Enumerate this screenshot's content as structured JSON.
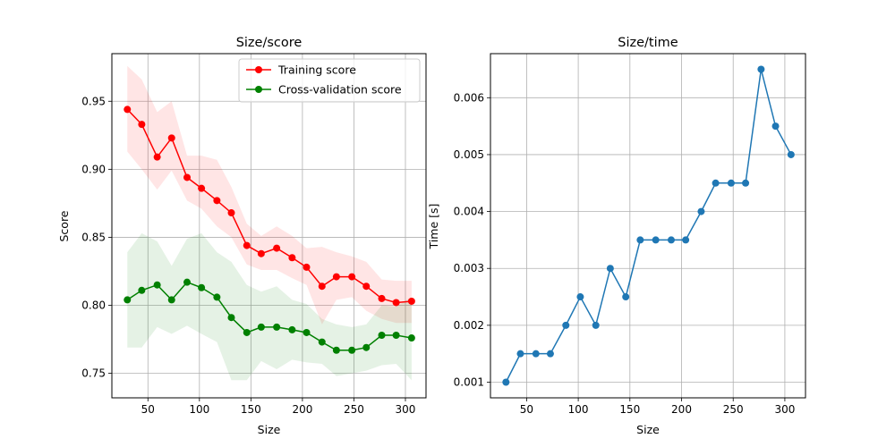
{
  "chart_data": [
    {
      "type": "line",
      "title": "Size/score",
      "xlabel": "Size",
      "ylabel": "Score",
      "xlim": [
        15,
        320
      ],
      "ylim": [
        0.732,
        0.985
      ],
      "xticks": [
        50,
        100,
        150,
        200,
        250,
        300
      ],
      "xtick_labels": [
        "50",
        "100",
        "150",
        "200",
        "250",
        "300"
      ],
      "yticks": [
        0.75,
        0.8,
        0.85,
        0.9,
        0.95
      ],
      "ytick_labels": [
        "0.75",
        "0.80",
        "0.85",
        "0.90",
        "0.95"
      ],
      "grid": true,
      "legend": "top-right",
      "x": [
        30,
        44,
        59,
        73,
        88,
        102,
        117,
        131,
        146,
        160,
        175,
        190,
        204,
        219,
        233,
        248,
        262,
        277,
        291,
        306
      ],
      "series": [
        {
          "name": "Training score",
          "color": "#ff0000",
          "values": [
            0.944,
            0.933,
            0.909,
            0.923,
            0.894,
            0.886,
            0.877,
            0.868,
            0.844,
            0.838,
            0.842,
            0.835,
            0.828,
            0.814,
            0.821,
            0.821,
            0.814,
            0.805,
            0.802,
            0.803
          ],
          "band_low": [
            0.913,
            0.9,
            0.885,
            0.899,
            0.877,
            0.871,
            0.858,
            0.85,
            0.83,
            0.826,
            0.826,
            0.82,
            0.815,
            0.786,
            0.804,
            0.806,
            0.796,
            0.79,
            0.787,
            0.787
          ],
          "band_high": [
            0.976,
            0.966,
            0.942,
            0.95,
            0.91,
            0.91,
            0.907,
            0.887,
            0.86,
            0.851,
            0.858,
            0.851,
            0.842,
            0.843,
            0.839,
            0.836,
            0.832,
            0.819,
            0.818,
            0.818
          ],
          "band_color": "#ff0000"
        },
        {
          "name": "Cross-validation score",
          "color": "#008000",
          "values": [
            0.804,
            0.811,
            0.815,
            0.804,
            0.817,
            0.813,
            0.806,
            0.791,
            0.78,
            0.784,
            0.784,
            0.782,
            0.78,
            0.773,
            0.767,
            0.767,
            0.769,
            0.778,
            0.778,
            0.776
          ],
          "band_low": [
            0.769,
            0.769,
            0.784,
            0.779,
            0.785,
            0.779,
            0.773,
            0.745,
            0.745,
            0.759,
            0.753,
            0.76,
            0.758,
            0.757,
            0.748,
            0.75,
            0.752,
            0.756,
            0.757,
            0.745
          ],
          "band_high": [
            0.839,
            0.853,
            0.847,
            0.829,
            0.849,
            0.853,
            0.839,
            0.832,
            0.815,
            0.81,
            0.814,
            0.804,
            0.801,
            0.79,
            0.786,
            0.784,
            0.786,
            0.8,
            0.799,
            0.806
          ],
          "band_color": "#008000"
        }
      ]
    },
    {
      "type": "line",
      "title": "Size/time",
      "xlabel": "Size",
      "ylabel": "Time [s]",
      "xlim": [
        15,
        320
      ],
      "ylim": [
        0.000725,
        0.006775
      ],
      "xticks": [
        50,
        100,
        150,
        200,
        250,
        300
      ],
      "xtick_labels": [
        "50",
        "100",
        "150",
        "200",
        "250",
        "300"
      ],
      "yticks": [
        0.001,
        0.002,
        0.003,
        0.004,
        0.005,
        0.006
      ],
      "ytick_labels": [
        "0.001",
        "0.002",
        "0.003",
        "0.004",
        "0.005",
        "0.006"
      ],
      "grid": true,
      "x": [
        30,
        44,
        59,
        73,
        88,
        102,
        117,
        131,
        146,
        160,
        175,
        190,
        204,
        219,
        233,
        248,
        262,
        277,
        291,
        306
      ],
      "series": [
        {
          "color": "#1f77b4",
          "values": [
            0.001,
            0.0015,
            0.0015,
            0.0015,
            0.002,
            0.0025,
            0.002,
            0.003,
            0.0025,
            0.0035,
            0.0035,
            0.0035,
            0.0035,
            0.004,
            0.0045,
            0.0045,
            0.0045,
            0.0065,
            0.0055,
            0.005
          ]
        }
      ]
    }
  ]
}
